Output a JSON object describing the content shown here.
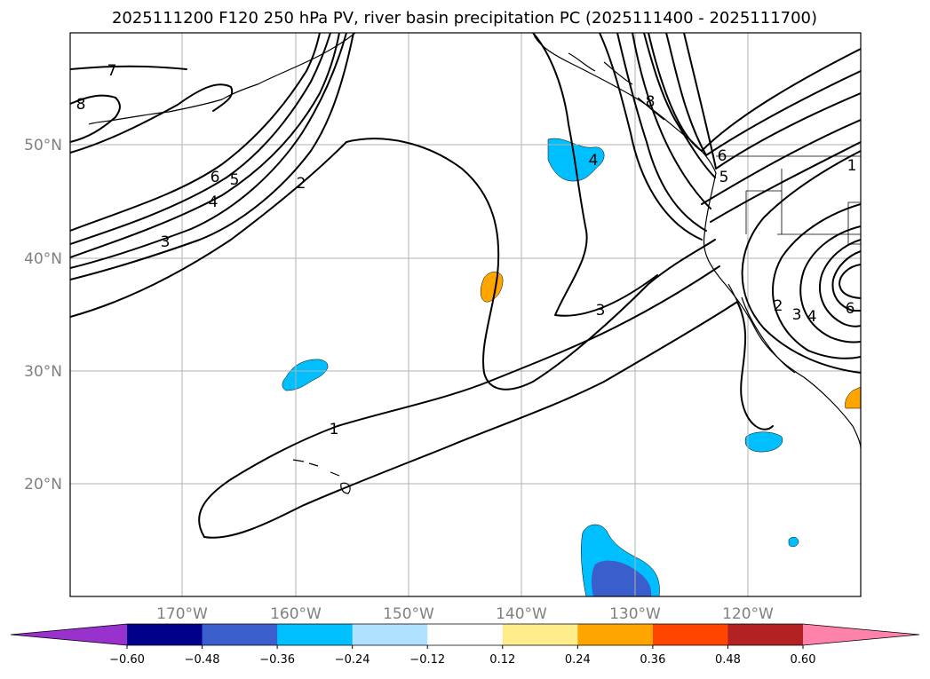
{
  "title": "2025111200 F120 250 hPa PV, river basin precipitation PC (2025111400 - 2025111700)",
  "lat_labels": [
    "50°N",
    "40°N",
    "30°N",
    "20°N"
  ],
  "lon_labels": [
    "170°W",
    "160°W",
    "150°W",
    "140°W",
    "130°W",
    "120°W"
  ],
  "contour_labels": [
    "7",
    "8",
    "6",
    "5",
    "4",
    "3",
    "2",
    "1",
    "3",
    "4",
    "8",
    "6",
    "5",
    "2",
    "3",
    "4",
    "6",
    "1"
  ],
  "colorbar": {
    "ticks": [
      "−0.60",
      "−0.48",
      "−0.36",
      "−0.24",
      "−0.12",
      "0.12",
      "0.24",
      "0.36",
      "0.48",
      "0.60"
    ],
    "colors": [
      "#9932cc",
      "#00008b",
      "#3a5fcd",
      "#00bfff",
      "#b0e2ff",
      "#ffffff",
      "#ffec8b",
      "#ffa500",
      "#ff4500",
      "#b22222",
      "#ff82ab"
    ]
  },
  "shading_colors": {
    "neg_mid": "#00bfff",
    "neg_strong": "#3a5fcd",
    "pos_mid": "#ffa500"
  }
}
